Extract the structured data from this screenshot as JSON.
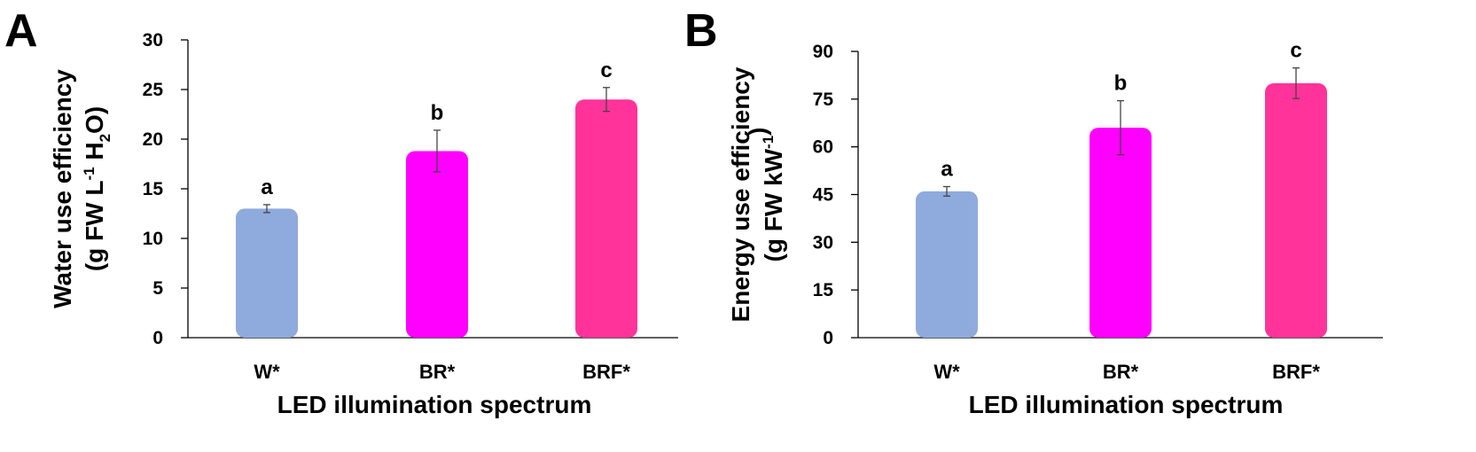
{
  "chart_data": [
    {
      "type": "bar",
      "panel": "A",
      "ylabel": "Water use efficiency",
      "ylabel_unit": {
        "prefix": "(g FW L",
        "sup": "-1",
        "mid": " H",
        "sub": "2",
        "suffix": "O)"
      },
      "xlabel": "LED illumination spectrum",
      "categories": [
        "W*",
        "BR*",
        "BRF*"
      ],
      "values": [
        13.0,
        18.8,
        24.0
      ],
      "errors": [
        0.4,
        2.1,
        1.2
      ],
      "significance": [
        "a",
        "b",
        "c"
      ],
      "colors": [
        "#8faadc",
        "#ff00ff",
        "#ff3399"
      ],
      "ylim": [
        0,
        30
      ],
      "yticks": [
        0,
        5,
        10,
        15,
        20,
        25,
        30
      ],
      "grid": false
    },
    {
      "type": "bar",
      "panel": "B",
      "ylabel": "Energy use efficiency",
      "ylabel_unit": {
        "prefix": "(g FW kW",
        "sup": "-1",
        "mid": "",
        "sub": "",
        "suffix": ")"
      },
      "xlabel": "LED illumination spectrum",
      "categories": [
        "W*",
        "BR*",
        "BRF*"
      ],
      "values": [
        46.0,
        66.0,
        80.0
      ],
      "errors": [
        1.5,
        8.5,
        4.8
      ],
      "significance": [
        "a",
        "b",
        "c"
      ],
      "colors": [
        "#8faadc",
        "#ff00ff",
        "#ff3399"
      ],
      "ylim": [
        0,
        90
      ],
      "yticks": [
        0,
        15,
        30,
        45,
        60,
        75,
        90
      ],
      "grid": false
    }
  ]
}
